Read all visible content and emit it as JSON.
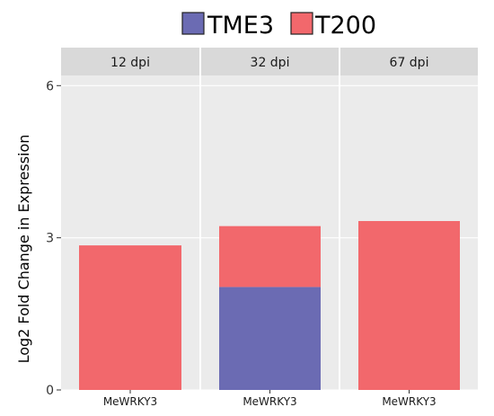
{
  "chart_data": {
    "type": "bar",
    "stacked": true,
    "ylabel": "Log2 Fold Change in Expression",
    "xlabel": "",
    "ylim": [
      0,
      6.2
    ],
    "yticks": [
      0,
      3,
      6
    ],
    "legend": {
      "placement": "top",
      "title": ""
    },
    "series": [
      {
        "name": "TME3",
        "color": "#6B6BB3"
      },
      {
        "name": "T200",
        "color": "#F2686C"
      }
    ],
    "facets": [
      {
        "label": "12 dpi",
        "category": "MeWRKY3",
        "values": {
          "TME3": 0,
          "T200": 2.85
        }
      },
      {
        "label": "32 dpi",
        "category": "MeWRKY3",
        "values": {
          "TME3": 2.03,
          "T200": 1.2
        }
      },
      {
        "label": "67 dpi",
        "category": "MeWRKY3",
        "values": {
          "TME3": 0,
          "T200": 3.33
        }
      }
    ],
    "panel_background": "#EBEBEB",
    "strip_background": "#D9D9D9",
    "grid": true
  }
}
